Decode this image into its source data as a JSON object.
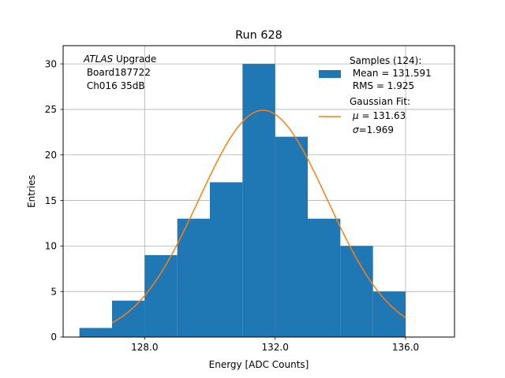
{
  "chart_data": {
    "type": "bar",
    "title": "Run 628",
    "xlabel": "Energy [ADC Counts]",
    "ylabel": "Entries",
    "xlim": [
      125.5,
      137.5
    ],
    "ylim": [
      0,
      32
    ],
    "grid": true,
    "x_ticks": [
      128,
      132,
      136
    ],
    "x_tick_labels": [
      "128.0",
      "132.0",
      "136.0"
    ],
    "y_ticks": [
      0,
      5,
      10,
      15,
      20,
      25,
      30
    ],
    "y_tick_labels": [
      "0",
      "5",
      "10",
      "15",
      "20",
      "25",
      "30"
    ],
    "bins": [
      {
        "left": 126,
        "right": 127,
        "count": 1
      },
      {
        "left": 127,
        "right": 128,
        "count": 4
      },
      {
        "left": 128,
        "right": 129,
        "count": 9
      },
      {
        "left": 129,
        "right": 130,
        "count": 13
      },
      {
        "left": 130,
        "right": 131,
        "count": 17
      },
      {
        "left": 131,
        "right": 132,
        "count": 30
      },
      {
        "left": 132,
        "right": 133,
        "count": 22
      },
      {
        "left": 133,
        "right": 134,
        "count": 13
      },
      {
        "left": 134,
        "right": 135,
        "count": 10
      },
      {
        "left": 135,
        "right": 136,
        "count": 5
      }
    ],
    "fit": {
      "type": "gaussian",
      "mu": 131.63,
      "sigma": 1.969,
      "amplitude": 24.9,
      "x_range": [
        127,
        136
      ]
    },
    "colors": {
      "bars": "#1f77b4",
      "fit": "#ff7f0e",
      "grid": "#b0b0b0"
    },
    "annotation": {
      "atlas": "ATLAS",
      "upgrade": " Upgrade",
      "board": " Board187722",
      "channel": " Ch016 35dB"
    },
    "legend": {
      "placement": "top-right",
      "samples_line1": "Samples (124):",
      "samples_line2": " Mean = 131.591",
      "samples_line3": " RMS = 1.925",
      "fit_line1": "Gaussian Fit:",
      "fit_mu_symbol": "μ",
      "fit_mu_value": " = 131.63",
      "fit_sigma_symbol": "σ",
      "fit_sigma_value": "=1.969"
    }
  }
}
